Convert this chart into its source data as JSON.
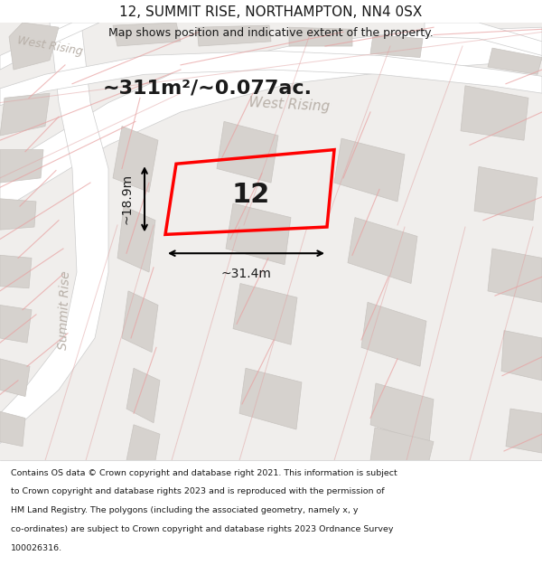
{
  "title_line1": "12, SUMMIT RISE, NORTHAMPTON, NN4 0SX",
  "title_line2": "Map shows position and indicative extent of the property.",
  "area_text": "~311m²/~0.077ac.",
  "label_number": "12",
  "dim_width": "~31.4m",
  "dim_height": "~18.9m",
  "street_west_rising": "West Rising",
  "street_summit_rise": "Summit Rise",
  "street_west_rising2": "West Rising",
  "footer_text": "Contains OS data © Crown copyright and database right 2021. This information is subject to Crown copyright and database rights 2023 and is reproduced with the permission of HM Land Registry. The polygons (including the associated geometry, namely x, y co-ordinates) are subject to Crown copyright and database rights 2023 Ordnance Survey 100026316.",
  "bg_color": "#f0eeec",
  "map_bg": "#e8e6e3",
  "road_color": "#ffffff",
  "road_stroke": "#d0c8c0",
  "building_color": "#d8d4d0",
  "highlight_color": "#ff0000",
  "road_label_color": "#b0a898",
  "text_color": "#1a1a1a",
  "footer_bg": "#ffffff",
  "street_label_color": "#c0b8b0"
}
